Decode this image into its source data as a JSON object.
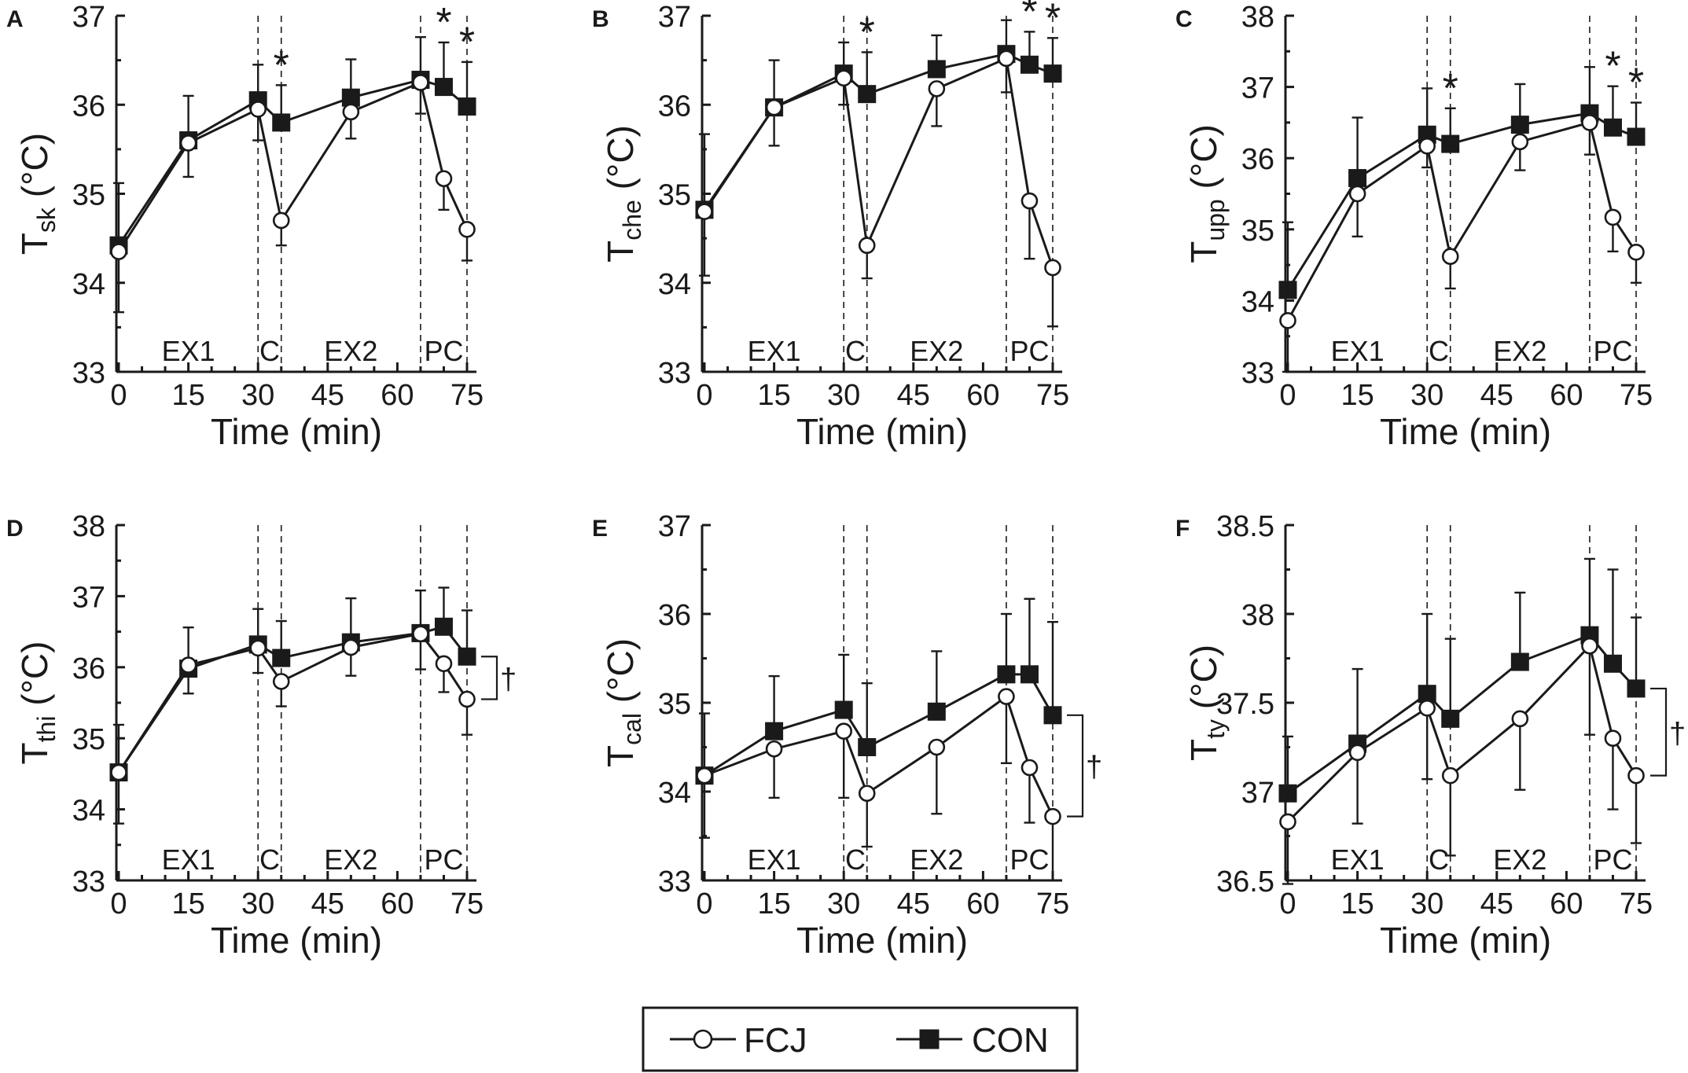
{
  "legend": [
    {
      "name": "FCJ",
      "marker": "open-circle"
    },
    {
      "name": "CON",
      "marker": "filled-square"
    }
  ],
  "colors": {
    "ink": "#1a1a1a",
    "background": "#ffffff"
  },
  "chart_data": [
    {
      "panel": "A",
      "type": "line",
      "ylabel_main": "T",
      "ylabel_sub": "sk",
      "ylabel_unit": " (°C)",
      "xlabel": "Time (min)",
      "xlim": [
        0,
        75
      ],
      "xticks": [
        0,
        15,
        30,
        45,
        60,
        75
      ],
      "ylim": [
        33,
        37
      ],
      "yticks": [
        "33",
        "34",
        "35",
        "36",
        "37"
      ],
      "phases": [
        "EX1",
        "C",
        "EX2",
        "PC"
      ],
      "phase_boundaries": [
        30,
        35,
        65,
        75
      ],
      "x": [
        0,
        15,
        30,
        35,
        50,
        65,
        70,
        75
      ],
      "series": [
        {
          "name": "FCJ",
          "values": [
            34.35,
            35.57,
            35.95,
            34.7,
            35.92,
            36.25,
            35.17,
            34.6
          ],
          "err": [
            0.68,
            0.38,
            0.35,
            0.28,
            0.3,
            0.35,
            0.35,
            0.35
          ]
        },
        {
          "name": "CON",
          "values": [
            34.42,
            35.6,
            36.05,
            35.8,
            36.08,
            36.28,
            36.2,
            35.98
          ],
          "err": [
            0.7,
            0.5,
            0.4,
            0.42,
            0.43,
            0.48,
            0.5,
            0.5
          ]
        }
      ],
      "significance": [
        {
          "x": 35,
          "mark": "*"
        },
        {
          "x": 70,
          "mark": "*"
        },
        {
          "x": 75,
          "mark": "*"
        }
      ],
      "bracket": null
    },
    {
      "panel": "B",
      "type": "line",
      "ylabel_main": "T",
      "ylabel_sub": "che",
      "ylabel_unit": " (°C)",
      "xlabel": "Time (min)",
      "xlim": [
        0,
        75
      ],
      "xticks": [
        0,
        15,
        30,
        45,
        60,
        75
      ],
      "ylim": [
        33,
        37
      ],
      "yticks": [
        "33",
        "34",
        "35",
        "36",
        "37"
      ],
      "phases": [
        "EX1",
        "C",
        "EX2",
        "PC"
      ],
      "phase_boundaries": [
        30,
        35,
        65,
        75
      ],
      "x": [
        0,
        15,
        30,
        35,
        50,
        65,
        70,
        75
      ],
      "series": [
        {
          "name": "FCJ",
          "values": [
            34.8,
            35.97,
            36.3,
            34.42,
            36.18,
            36.52,
            34.92,
            34.17
          ],
          "err": [
            0.72,
            0.43,
            0.3,
            0.37,
            0.42,
            0.38,
            0.65,
            0.66
          ]
        },
        {
          "name": "CON",
          "values": [
            34.82,
            35.97,
            36.35,
            36.12,
            36.4,
            36.57,
            36.45,
            36.35
          ],
          "err": [
            0.85,
            0.53,
            0.35,
            0.47,
            0.38,
            0.38,
            0.37,
            0.4
          ]
        }
      ],
      "significance": [
        {
          "x": 35,
          "mark": "*"
        },
        {
          "x": 70,
          "mark": "*"
        },
        {
          "x": 75,
          "mark": "*"
        }
      ],
      "bracket": null
    },
    {
      "panel": "C",
      "type": "line",
      "ylabel_main": "T",
      "ylabel_sub": "upp",
      "ylabel_unit": " (°C)",
      "xlabel": "Time (min)",
      "xlim": [
        0,
        75
      ],
      "xticks": [
        0,
        15,
        30,
        45,
        60,
        75
      ],
      "ylim": [
        33,
        38
      ],
      "yticks": [
        "33",
        "34",
        "35",
        "36",
        "37",
        "38"
      ],
      "phases": [
        "EX1",
        "C",
        "EX2",
        "PC"
      ],
      "phase_boundaries": [
        30,
        35,
        65,
        75
      ],
      "x": [
        0,
        15,
        30,
        35,
        50,
        65,
        70,
        75
      ],
      "series": [
        {
          "name": "FCJ",
          "values": [
            33.72,
            35.5,
            36.17,
            34.62,
            36.23,
            36.5,
            35.17,
            34.68
          ],
          "err": [
            0.72,
            0.6,
            0.3,
            0.45,
            0.4,
            0.45,
            0.48,
            0.43
          ]
        },
        {
          "name": "CON",
          "values": [
            34.15,
            35.72,
            36.33,
            36.2,
            36.47,
            36.63,
            36.43,
            36.3
          ],
          "err": [
            0.95,
            0.85,
            0.65,
            0.5,
            0.57,
            0.65,
            0.58,
            0.48
          ]
        }
      ],
      "significance": [
        {
          "x": 35,
          "mark": "*"
        },
        {
          "x": 70,
          "mark": "*"
        },
        {
          "x": 75,
          "mark": "*"
        }
      ],
      "bracket": null
    },
    {
      "panel": "D",
      "type": "line",
      "ylabel_main": "T",
      "ylabel_sub": "thi",
      "ylabel_unit": " (°C)",
      "xlabel": "Time (min)",
      "xlim": [
        0,
        75
      ],
      "xticks": [
        0,
        15,
        30,
        45,
        60,
        75
      ],
      "ylim": [
        33,
        38
      ],
      "yticks": [
        "33",
        "34",
        "35",
        "36",
        "37",
        "38"
      ],
      "phases": [
        "EX1",
        "C",
        "EX2",
        "PC"
      ],
      "phase_boundaries": [
        30,
        35,
        65,
        75
      ],
      "x": [
        0,
        15,
        30,
        35,
        50,
        65,
        70,
        75
      ],
      "series": [
        {
          "name": "FCJ",
          "values": [
            34.52,
            36.03,
            36.27,
            35.8,
            36.28,
            36.47,
            36.05,
            35.55
          ],
          "err": [
            0.72,
            0.4,
            0.35,
            0.35,
            0.4,
            0.5,
            0.4,
            0.5
          ]
        },
        {
          "name": "CON",
          "values": [
            34.52,
            35.98,
            36.32,
            36.13,
            36.35,
            36.48,
            36.57,
            36.15
          ],
          "err": [
            0.67,
            0.58,
            0.5,
            0.52,
            0.62,
            0.6,
            0.55,
            0.65
          ]
        }
      ],
      "significance": [],
      "bracket": {
        "from": 36.15,
        "to": 35.55,
        "mark": "†"
      }
    },
    {
      "panel": "E",
      "type": "line",
      "ylabel_main": "T",
      "ylabel_sub": "cal",
      "ylabel_unit": " (°C)",
      "xlabel": "Time (min)",
      "xlim": [
        0,
        75
      ],
      "xticks": [
        0,
        15,
        30,
        45,
        60,
        75
      ],
      "ylim": [
        33,
        37
      ],
      "yticks": [
        "33",
        "34",
        "35",
        "36",
        "37"
      ],
      "phases": [
        "EX1",
        "C",
        "EX2",
        "PC"
      ],
      "phase_boundaries": [
        30,
        35,
        65,
        75
      ],
      "x": [
        0,
        15,
        30,
        35,
        50,
        65,
        70,
        75
      ],
      "series": [
        {
          "name": "FCJ",
          "values": [
            34.18,
            34.48,
            34.68,
            33.98,
            34.5,
            35.07,
            34.27,
            33.72
          ],
          "err": [
            0.7,
            0.55,
            0.75,
            0.6,
            0.75,
            0.75,
            0.62,
            0.72
          ]
        },
        {
          "name": "CON",
          "values": [
            34.18,
            34.68,
            34.92,
            34.5,
            34.9,
            35.32,
            35.32,
            34.86
          ],
          "err": [
            0.7,
            0.62,
            0.62,
            0.72,
            0.68,
            0.68,
            0.85,
            1.05
          ]
        }
      ],
      "significance": [],
      "bracket": {
        "from": 34.86,
        "to": 33.72,
        "mark": "†"
      }
    },
    {
      "panel": "F",
      "type": "line",
      "ylabel_main": "T",
      "ylabel_sub": "ty",
      "ylabel_unit": " (°C)",
      "xlabel": "Time (min)",
      "xlim": [
        0,
        75
      ],
      "xticks": [
        0,
        15,
        30,
        45,
        60,
        75
      ],
      "ylim": [
        36.5,
        38.5
      ],
      "yticks": [
        "36.5",
        "37",
        "37.5",
        "38",
        "38.5"
      ],
      "phases": [
        "EX1",
        "C",
        "EX2",
        "PC"
      ],
      "phase_boundaries": [
        30,
        35,
        65,
        75
      ],
      "x": [
        0,
        15,
        30,
        35,
        50,
        65,
        70,
        75
      ],
      "series": [
        {
          "name": "FCJ",
          "values": [
            36.83,
            37.22,
            37.47,
            37.09,
            37.41,
            37.82,
            37.3,
            37.09
          ],
          "err": [
            0.35,
            0.4,
            0.4,
            0.45,
            0.4,
            0.5,
            0.4,
            0.38
          ]
        },
        {
          "name": "CON",
          "values": [
            36.99,
            37.27,
            37.55,
            37.41,
            37.73,
            37.88,
            37.72,
            37.58
          ],
          "err": [
            0.32,
            0.42,
            0.45,
            0.45,
            0.39,
            0.43,
            0.53,
            0.4
          ]
        }
      ],
      "significance": [],
      "bracket": {
        "from": 37.58,
        "to": 37.09,
        "mark": "†"
      }
    }
  ]
}
